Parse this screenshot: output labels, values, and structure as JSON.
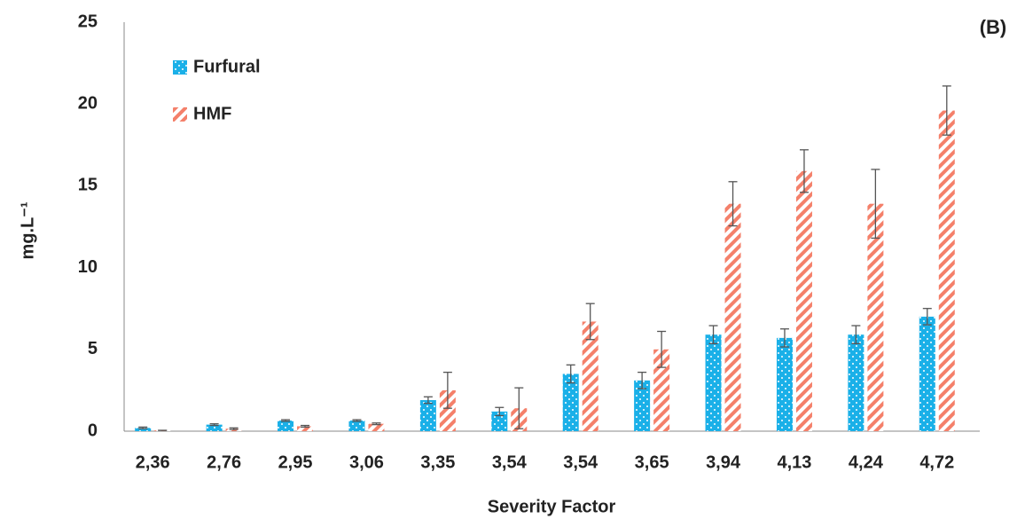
{
  "chart_data": {
    "type": "bar",
    "panel_label": "(B)",
    "x_label": "Severity Factor",
    "y_label": "mg.L⁻¹",
    "categories": [
      "2,36",
      "2,76",
      "2,95",
      "3,06",
      "3,35",
      "3,54",
      "3,54",
      "3,65",
      "3,94",
      "4,13",
      "4,24",
      "4,72"
    ],
    "series": [
      {
        "name": "Furfural",
        "color": "#1ab0e8",
        "values": [
          0.2,
          0.4,
          0.65,
          0.65,
          1.9,
          1.2,
          3.5,
          3.1,
          5.9,
          5.7,
          5.9,
          7.0
        ],
        "errors": [
          0.05,
          0.05,
          0.05,
          0.05,
          0.2,
          0.25,
          0.55,
          0.5,
          0.55,
          0.55,
          0.55,
          0.5
        ]
      },
      {
        "name": "HMF",
        "color": "#f4806a",
        "values": [
          0.05,
          0.15,
          0.3,
          0.45,
          2.5,
          1.4,
          6.7,
          5.0,
          13.9,
          15.9,
          13.9,
          19.6
        ],
        "errors": [
          0,
          0.05,
          0.05,
          0.05,
          1.1,
          1.25,
          1.1,
          1.1,
          1.35,
          1.3,
          2.1,
          1.5
        ]
      }
    ],
    "ylim": [
      0,
      25
    ],
    "yticks": [
      0,
      5,
      10,
      15,
      20,
      25
    ],
    "grid": false,
    "legend": "upper-left"
  }
}
